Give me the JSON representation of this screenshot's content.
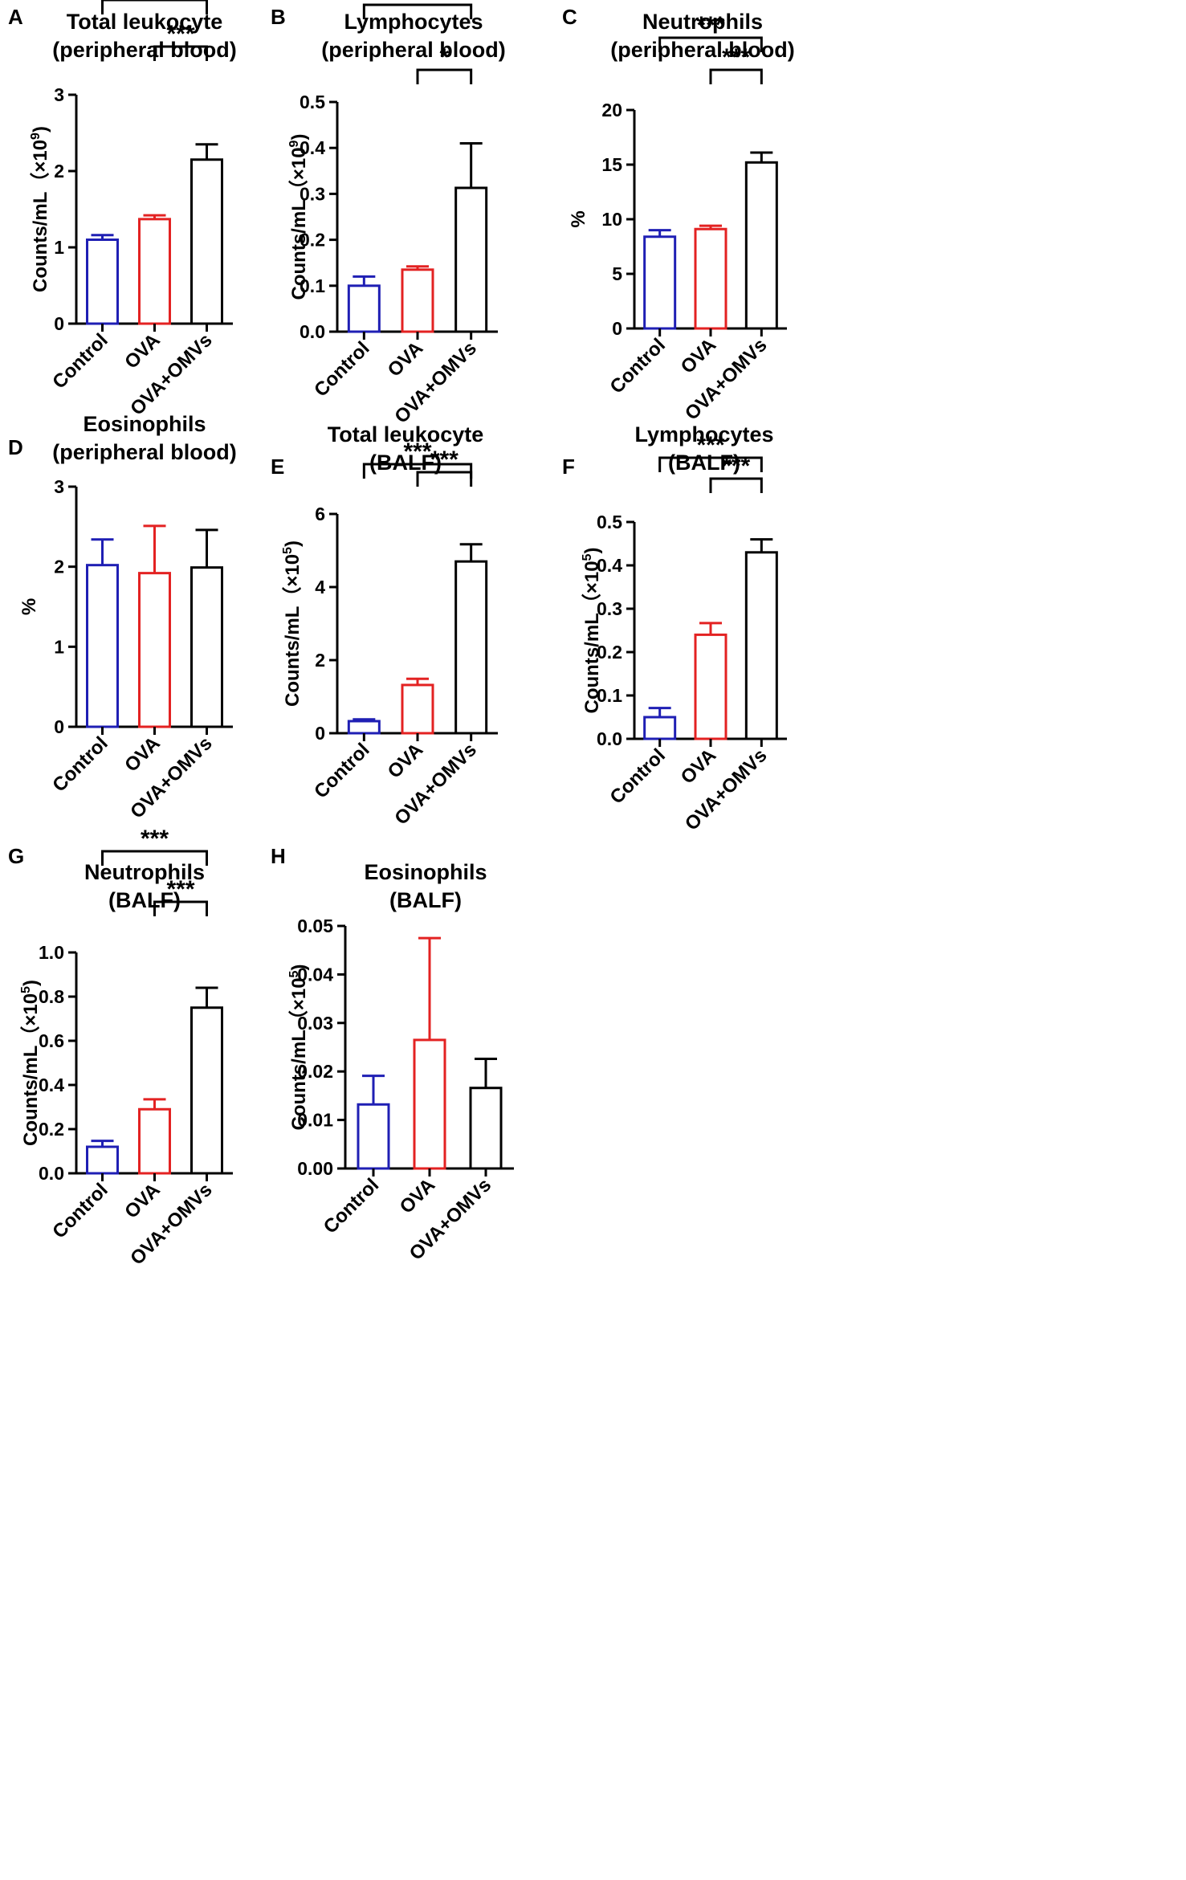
{
  "colors": {
    "control": "#1f1fb4",
    "ova": "#e32222",
    "ova_omvs": "#000000",
    "axis": "#000000"
  },
  "chart_data": [
    {
      "panel": "A",
      "type": "bar",
      "title": [
        "Total leukocyte",
        "(peripheral blood)"
      ],
      "ylabel": "Counts/mL（×10",
      "ylabel_sup": "9",
      "ylabel_close": ")",
      "categories": [
        "Control",
        "OVA",
        "OVA+OMVs"
      ],
      "values": [
        1.1,
        1.37,
        2.15
      ],
      "errors": [
        0.06,
        0.05,
        0.2
      ],
      "ylim": [
        0,
        3
      ],
      "yticks": [
        "0",
        "1",
        "2",
        "3"
      ],
      "significance": [
        {
          "from": 0,
          "to": 2,
          "label": "***"
        },
        {
          "from": 1,
          "to": 2,
          "label": "***"
        }
      ]
    },
    {
      "panel": "B",
      "type": "bar",
      "title": [
        "Lymphocytes",
        "(peripheral blood)"
      ],
      "ylabel": "Counts/mL（×10",
      "ylabel_sup": "9",
      "ylabel_close": ")",
      "categories": [
        "Control",
        "OVA",
        "OVA+OMVs"
      ],
      "values": [
        0.1,
        0.135,
        0.313
      ],
      "errors": [
        0.02,
        0.007,
        0.097
      ],
      "ylim": [
        0,
        0.5
      ],
      "yticks": [
        "0.0",
        "0.1",
        "0.2",
        "0.3",
        "0.4",
        "0.5"
      ],
      "significance": [
        {
          "from": 0,
          "to": 2,
          "label": "*"
        },
        {
          "from": 1,
          "to": 2,
          "label": "*"
        }
      ]
    },
    {
      "panel": "C",
      "type": "bar",
      "title": [
        "Neutrophils",
        "(peripheral blood)"
      ],
      "ylabel": "%",
      "ylabel_sup": "",
      "ylabel_close": "",
      "categories": [
        "Control",
        "OVA",
        "OVA+OMVs"
      ],
      "values": [
        8.4,
        9.1,
        15.2
      ],
      "errors": [
        0.6,
        0.3,
        0.9
      ],
      "ylim": [
        0,
        20
      ],
      "yticks": [
        "0",
        "5",
        "10",
        "15",
        "20"
      ],
      "significance": [
        {
          "from": 0,
          "to": 2,
          "label": "***"
        },
        {
          "from": 1,
          "to": 2,
          "label": "***"
        }
      ]
    },
    {
      "panel": "D",
      "type": "bar",
      "title": [
        "Eosinophils",
        "(peripheral blood)"
      ],
      "ylabel": "%",
      "ylabel_sup": "",
      "ylabel_close": "",
      "categories": [
        "Control",
        "OVA",
        "OVA+OMVs"
      ],
      "values": [
        2.02,
        1.92,
        1.99
      ],
      "errors": [
        0.32,
        0.59,
        0.47
      ],
      "ylim": [
        0,
        3
      ],
      "yticks": [
        "0",
        "1",
        "2",
        "3"
      ],
      "significance": []
    },
    {
      "panel": "E",
      "type": "bar",
      "title": [
        "Total leukocyte",
        "(BALF)"
      ],
      "ylabel": "Counts/mL（×10",
      "ylabel_sup": "5",
      "ylabel_close": ")",
      "categories": [
        "Control",
        "OVA",
        "OVA+OMVs"
      ],
      "values": [
        0.33,
        1.32,
        4.7
      ],
      "errors": [
        0.05,
        0.17,
        0.47
      ],
      "ylim": [
        0,
        6
      ],
      "yticks": [
        "0",
        "2",
        "4",
        "6"
      ],
      "significance": [
        {
          "from": 0,
          "to": 2,
          "label": "***"
        },
        {
          "from": 1,
          "to": 2,
          "label": "***"
        }
      ]
    },
    {
      "panel": "F",
      "type": "bar",
      "title": [
        "Lymphocytes",
        "(BALF)"
      ],
      "ylabel": "Counts/mL（×10",
      "ylabel_sup": "5",
      "ylabel_close": ")",
      "categories": [
        "Control",
        "OVA",
        "OVA+OMVs"
      ],
      "values": [
        0.05,
        0.24,
        0.43
      ],
      "errors": [
        0.021,
        0.027,
        0.03
      ],
      "ylim": [
        0,
        0.5
      ],
      "yticks": [
        "0.0",
        "0.1",
        "0.2",
        "0.3",
        "0.4",
        "0.5"
      ],
      "significance": [
        {
          "from": 0,
          "to": 2,
          "label": "***"
        },
        {
          "from": 1,
          "to": 2,
          "label": "***"
        }
      ]
    },
    {
      "panel": "G",
      "type": "bar",
      "title": [
        "Neutrophils",
        "(BALF)"
      ],
      "ylabel": "Counts/mL（×10",
      "ylabel_sup": "5",
      "ylabel_close": ")",
      "categories": [
        "Control",
        "OVA",
        "OVA+OMVs"
      ],
      "values": [
        0.12,
        0.29,
        0.75
      ],
      "errors": [
        0.027,
        0.045,
        0.09
      ],
      "ylim": [
        0,
        1
      ],
      "yticks": [
        "0.0",
        "0.2",
        "0.4",
        "0.6",
        "0.8",
        "1.0"
      ],
      "significance": [
        {
          "from": 0,
          "to": 2,
          "label": "***"
        },
        {
          "from": 1,
          "to": 2,
          "label": "***"
        }
      ]
    },
    {
      "panel": "H",
      "type": "bar",
      "title": [
        "Eosinophils",
        "(BALF)"
      ],
      "ylabel": "Counts/mL（×10",
      "ylabel_sup": "5",
      "ylabel_close": ")",
      "categories": [
        "Control",
        "OVA",
        "OVA+OMVs"
      ],
      "values": [
        0.0132,
        0.0265,
        0.0166
      ],
      "errors": [
        0.0059,
        0.021,
        0.006
      ],
      "ylim": [
        0,
        0.05
      ],
      "yticks": [
        "0.00",
        "0.01",
        "0.02",
        "0.03",
        "0.04",
        "0.05"
      ],
      "significance": []
    }
  ]
}
